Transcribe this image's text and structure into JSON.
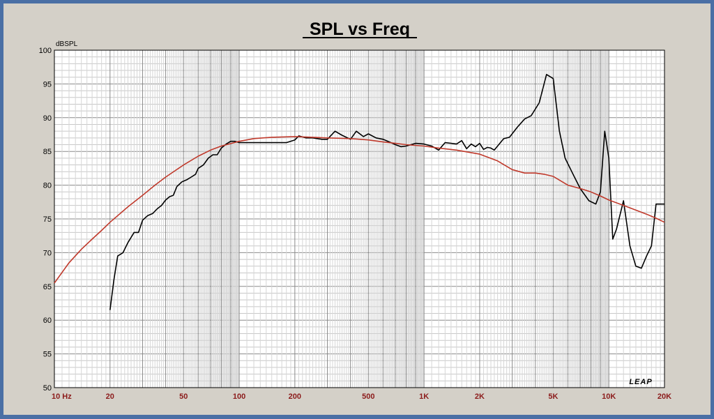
{
  "chart_data": {
    "type": "line",
    "title": "SPL vs Freq",
    "ylabel": "dBSPL",
    "xlabel": "",
    "x_scale": "log",
    "xlim": [
      10,
      20000
    ],
    "ylim": [
      50,
      100
    ],
    "grid": true,
    "y_ticks": [
      "100",
      "95",
      "90",
      "85",
      "80",
      "75",
      "70",
      "65",
      "60",
      "55",
      "50"
    ],
    "x_ticks": [
      {
        "value": 10,
        "label": "10  Hz"
      },
      {
        "value": 20,
        "label": "20"
      },
      {
        "value": 50,
        "label": "50"
      },
      {
        "value": 100,
        "label": "100"
      },
      {
        "value": 200,
        "label": "200"
      },
      {
        "value": 500,
        "label": "500"
      },
      {
        "value": 1000,
        "label": "1K"
      },
      {
        "value": 2000,
        "label": "2K"
      },
      {
        "value": 5000,
        "label": "5K"
      },
      {
        "value": 10000,
        "label": "10K"
      },
      {
        "value": 20000,
        "label": "20K"
      }
    ],
    "logo": "LEAP",
    "series": [
      {
        "color": "#000000",
        "x": [
          20,
          21,
          22,
          23.5,
          25,
          27,
          28.5,
          30,
          32,
          34,
          36,
          38,
          40,
          42,
          44,
          46,
          49,
          52,
          55,
          58,
          60,
          64,
          68,
          72,
          76,
          80,
          85,
          90,
          95,
          100,
          110,
          115,
          120,
          150,
          180,
          200,
          210,
          230,
          250,
          280,
          300,
          330,
          360,
          400,
          430,
          470,
          500,
          550,
          600,
          650,
          700,
          750,
          800,
          900,
          1000,
          1100,
          1200,
          1300,
          1400,
          1500,
          1600,
          1700,
          1800,
          1900,
          2000,
          2100,
          2200,
          2300,
          2400,
          2500,
          2700,
          2900,
          3200,
          3500,
          3800,
          4200,
          4600,
          5000,
          5400,
          5800,
          6300,
          7000,
          7800,
          8500,
          9000,
          9500,
          10000,
          10500,
          11000,
          12000,
          13000,
          14000,
          15000,
          16000,
          17000,
          18000,
          19000,
          20000
        ],
        "y": [
          61.5,
          66,
          69.5,
          70,
          71.5,
          73,
          73,
          74.8,
          75.5,
          75.8,
          76.5,
          77,
          77.8,
          78.3,
          78.5,
          79.8,
          80.5,
          80.8,
          81.2,
          81.6,
          82.5,
          83,
          84,
          84.5,
          84.5,
          85.5,
          86.1,
          86.5,
          86.5,
          86.3,
          86.3,
          86.3,
          86.3,
          86.3,
          86.3,
          86.7,
          87.3,
          87,
          87,
          86.8,
          86.8,
          88,
          87.4,
          86.8,
          88,
          87.2,
          87.6,
          87,
          86.8,
          86.4,
          86,
          85.7,
          85.8,
          86.2,
          86.1,
          85.8,
          85.2,
          86.3,
          86.2,
          86.1,
          86.6,
          85.4,
          86.1,
          85.7,
          86.2,
          85.3,
          85.6,
          85.5,
          85.2,
          85.8,
          86.9,
          87.1,
          88.6,
          89.8,
          90.3,
          92.2,
          96.4,
          95.8,
          88,
          84,
          82,
          79.5,
          77.7,
          77.2,
          79,
          88,
          84,
          72,
          73.5,
          77.7,
          71,
          68,
          67.7,
          69.5,
          71,
          77.2,
          77.2,
          77.2
        ]
      },
      {
        "color": "#c0392b",
        "x": [
          10,
          12,
          14,
          16,
          18,
          20,
          25,
          30,
          35,
          40,
          50,
          60,
          70,
          80,
          100,
          120,
          150,
          200,
          250,
          300,
          400,
          500,
          600,
          700,
          800,
          1000,
          1200,
          1500,
          2000,
          2500,
          3000,
          3500,
          4000,
          4500,
          5000,
          6000,
          7000,
          8000,
          9000,
          10000,
          12000,
          14000,
          16000,
          18000,
          20000
        ],
        "y": [
          65.5,
          68.5,
          70.5,
          72,
          73.3,
          74.5,
          76.8,
          78.5,
          80,
          81.2,
          83,
          84.3,
          85.2,
          85.8,
          86.5,
          86.9,
          87.1,
          87.2,
          87.1,
          87,
          86.9,
          86.7,
          86.4,
          86.2,
          86,
          85.8,
          85.5,
          85.2,
          84.6,
          83.6,
          82.3,
          81.8,
          81.8,
          81.6,
          81.3,
          80,
          79.5,
          79,
          78.4,
          77.8,
          77,
          76.3,
          75.7,
          75.1,
          74.5
        ]
      }
    ]
  }
}
